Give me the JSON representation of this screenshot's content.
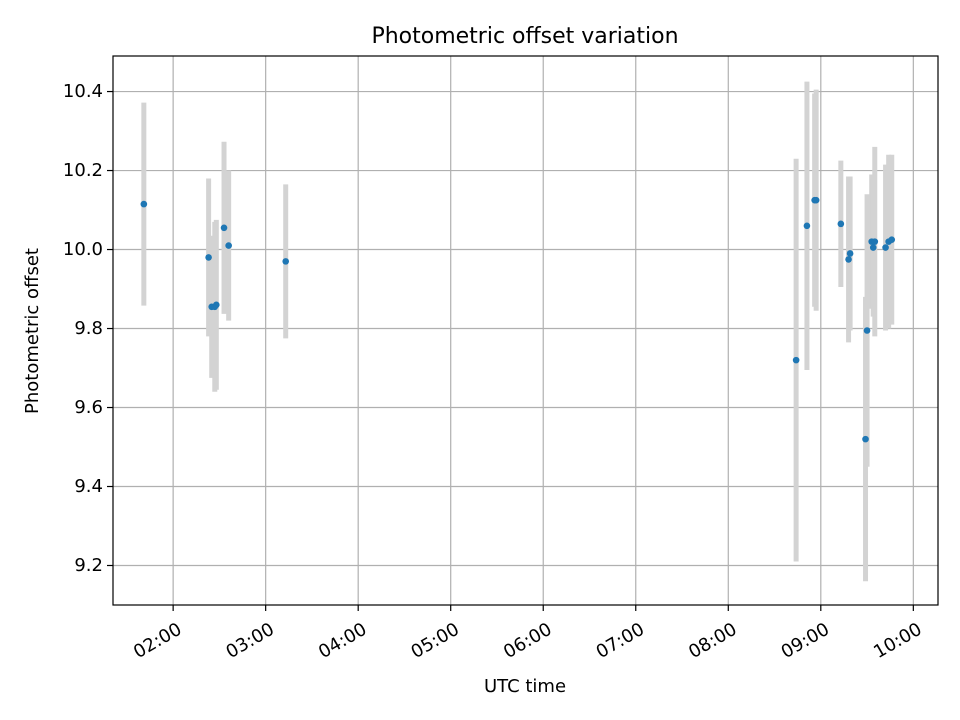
{
  "chart_data": {
    "type": "scatter",
    "title": "Photometric offset variation",
    "xlabel": "UTC time",
    "ylabel": "Photometric offset",
    "xlim": [
      "01:21",
      "10:16"
    ],
    "ylim": [
      9.1,
      10.49
    ],
    "grid": true,
    "x_ticks": [
      "02:00",
      "03:00",
      "04:00",
      "05:00",
      "06:00",
      "07:00",
      "08:00",
      "09:00",
      "10:00"
    ],
    "y_ticks": [
      "9.2",
      "9.4",
      "9.6",
      "9.8",
      "10.0",
      "10.2",
      "10.4"
    ],
    "colors": {
      "point": "#1f77b4",
      "errorbar": "#d3d3d3",
      "grid": "#b0b0b0"
    },
    "series": [
      {
        "points": [
          {
            "x": "01:41",
            "y": 10.115,
            "err": 0.257
          },
          {
            "x": "02:23",
            "y": 9.98,
            "err": 0.2
          },
          {
            "x": "02:25",
            "y": 9.855,
            "err": 0.18
          },
          {
            "x": "02:27",
            "y": 9.855,
            "err": 0.215
          },
          {
            "x": "02:28",
            "y": 9.86,
            "err": 0.215
          },
          {
            "x": "02:33",
            "y": 10.055,
            "err": 0.218
          },
          {
            "x": "02:36",
            "y": 10.01,
            "err": 0.19
          },
          {
            "x": "03:13",
            "y": 9.97,
            "err": 0.195
          },
          {
            "x": "08:44",
            "y": 9.72,
            "err": 0.51
          },
          {
            "x": "08:51",
            "y": 10.06,
            "err": 0.365
          },
          {
            "x": "08:56",
            "y": 10.125,
            "err": 0.27
          },
          {
            "x": "08:57",
            "y": 10.125,
            "err": 0.28
          },
          {
            "x": "09:13",
            "y": 10.065,
            "err": 0.16
          },
          {
            "x": "09:18",
            "y": 9.975,
            "err": 0.21
          },
          {
            "x": "09:19",
            "y": 9.99,
            "err": 0.195
          },
          {
            "x": "09:29",
            "y": 9.52,
            "err": 0.36
          },
          {
            "x": "09:30",
            "y": 9.795,
            "err": 0.345
          },
          {
            "x": "09:33",
            "y": 10.02,
            "err": 0.17
          },
          {
            "x": "09:34",
            "y": 10.005,
            "err": 0.175
          },
          {
            "x": "09:35",
            "y": 10.02,
            "err": 0.24
          },
          {
            "x": "09:42",
            "y": 10.005,
            "err": 0.21
          },
          {
            "x": "09:44",
            "y": 10.02,
            "err": 0.22
          },
          {
            "x": "09:46",
            "y": 10.025,
            "err": 0.215
          }
        ]
      }
    ]
  }
}
